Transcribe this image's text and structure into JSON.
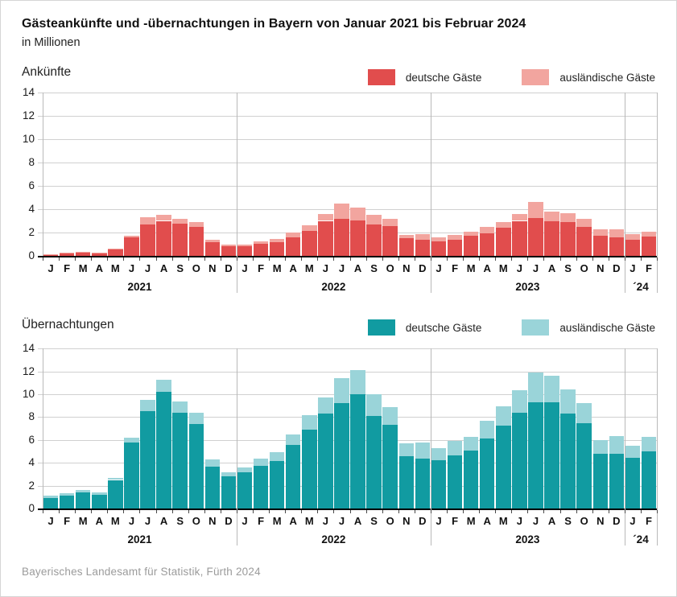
{
  "title": "Gästeankünfte und -übernachtungen in Bayern von Januar 2021 bis Februar 2024",
  "subtitle": "in Millionen",
  "source": "Bayerisches Landesamt für Statistik, Fürth 2024",
  "colors": {
    "arrivals_domestic": "#e14d4d",
    "arrivals_foreign": "#f2a59f",
    "nights_domestic": "#119ba1",
    "nights_foreign": "#9ad4d9",
    "grid": "#d0d0d0",
    "separator": "#b9b9b9",
    "axis": "#000000"
  },
  "x": {
    "month_letters": [
      "J",
      "F",
      "M",
      "A",
      "M",
      "J",
      "J",
      "A",
      "S",
      "O",
      "N",
      "D",
      "J",
      "F",
      "M",
      "A",
      "M",
      "J",
      "J",
      "A",
      "S",
      "O",
      "N",
      "D",
      "J",
      "F",
      "M",
      "A",
      "M",
      "J",
      "J",
      "A",
      "S",
      "O",
      "N",
      "D",
      "J",
      "F"
    ],
    "years": [
      {
        "label": "2021",
        "months": 12
      },
      {
        "label": "2022",
        "months": 12
      },
      {
        "label": "2023",
        "months": 12
      },
      {
        "label": "´24",
        "months": 2
      }
    ]
  },
  "chart_data": [
    {
      "type": "bar",
      "stacked": true,
      "title": "Ankünfte",
      "ylabel": "in Millionen",
      "ylim": [
        0,
        14
      ],
      "y_ticks": [
        14,
        12,
        10,
        8,
        6,
        4,
        2,
        0
      ],
      "grid": true,
      "legend_position": "top-right",
      "legend": [
        {
          "label": "deutsche Gäste",
          "color_key": "arrivals_domestic"
        },
        {
          "label": "ausländische Gäste",
          "color_key": "arrivals_foreign"
        }
      ],
      "categories": [
        "Jan 2021",
        "Feb 2021",
        "Mär 2021",
        "Apr 2021",
        "Mai 2021",
        "Jun 2021",
        "Jul 2021",
        "Aug 2021",
        "Sep 2021",
        "Okt 2021",
        "Nov 2021",
        "Dez 2021",
        "Jan 2022",
        "Feb 2022",
        "Mär 2022",
        "Apr 2022",
        "Mai 2022",
        "Jun 2022",
        "Jul 2022",
        "Aug 2022",
        "Sep 2022",
        "Okt 2022",
        "Nov 2022",
        "Dez 2022",
        "Jan 2023",
        "Feb 2023",
        "Mär 2023",
        "Apr 2023",
        "Mai 2023",
        "Jun 2023",
        "Jul 2023",
        "Aug 2023",
        "Sep 2023",
        "Okt 2023",
        "Nov 2023",
        "Dez 2023",
        "Jan 2024",
        "Feb 2024"
      ],
      "series": [
        {
          "name": "deutsche Gäste",
          "values": [
            0.1,
            0.2,
            0.3,
            0.25,
            0.55,
            1.6,
            2.7,
            3.0,
            2.75,
            2.5,
            1.2,
            0.8,
            0.8,
            1.05,
            1.2,
            1.6,
            2.15,
            3.0,
            3.15,
            3.05,
            2.7,
            2.55,
            1.5,
            1.35,
            1.25,
            1.4,
            1.7,
            1.95,
            2.4,
            3.0,
            3.25,
            2.95,
            2.9,
            2.5,
            1.75,
            1.6,
            1.35,
            1.65
          ]
        },
        {
          "name": "ausländische Gäste",
          "values": [
            0.05,
            0.05,
            0.05,
            0.05,
            0.1,
            0.15,
            0.6,
            0.55,
            0.45,
            0.4,
            0.2,
            0.15,
            0.15,
            0.2,
            0.25,
            0.4,
            0.5,
            0.6,
            1.3,
            1.1,
            0.8,
            0.6,
            0.3,
            0.5,
            0.35,
            0.4,
            0.4,
            0.5,
            0.5,
            0.6,
            1.35,
            0.85,
            0.75,
            0.7,
            0.5,
            0.7,
            0.5,
            0.4
          ]
        }
      ]
    },
    {
      "type": "bar",
      "stacked": true,
      "title": "Übernachtungen",
      "ylabel": "in Millionen",
      "ylim": [
        0,
        14
      ],
      "y_ticks": [
        14,
        12,
        10,
        8,
        6,
        4,
        2,
        0
      ],
      "grid": true,
      "legend_position": "top-right",
      "legend": [
        {
          "label": "deutsche Gäste",
          "color_key": "nights_domestic"
        },
        {
          "label": "ausländische Gäste",
          "color_key": "nights_foreign"
        }
      ],
      "categories": [
        "Jan 2021",
        "Feb 2021",
        "Mär 2021",
        "Apr 2021",
        "Mai 2021",
        "Jun 2021",
        "Jul 2021",
        "Aug 2021",
        "Sep 2021",
        "Okt 2021",
        "Nov 2021",
        "Dez 2021",
        "Jan 2022",
        "Feb 2022",
        "Mär 2022",
        "Apr 2022",
        "Mai 2022",
        "Jun 2022",
        "Jul 2022",
        "Aug 2022",
        "Sep 2022",
        "Okt 2022",
        "Nov 2022",
        "Dez 2022",
        "Jan 2023",
        "Feb 2023",
        "Mär 2023",
        "Apr 2023",
        "Mai 2023",
        "Jun 2023",
        "Jul 2023",
        "Aug 2023",
        "Sep 2023",
        "Okt 2023",
        "Nov 2023",
        "Dez 2023",
        "Jan 2024",
        "Feb 2024"
      ],
      "series": [
        {
          "name": "deutsche Gäste",
          "values": [
            0.9,
            1.1,
            1.4,
            1.2,
            2.5,
            5.8,
            8.5,
            10.2,
            8.4,
            7.4,
            3.65,
            2.8,
            3.2,
            3.75,
            4.15,
            5.55,
            6.9,
            8.3,
            9.2,
            10.0,
            8.1,
            7.3,
            4.6,
            4.35,
            4.25,
            4.65,
            5.05,
            6.15,
            7.25,
            8.4,
            9.3,
            9.3,
            8.3,
            7.45,
            4.8,
            4.8,
            4.45,
            5.0
          ]
        },
        {
          "name": "ausländische Gäste",
          "values": [
            0.2,
            0.25,
            0.25,
            0.2,
            0.15,
            0.4,
            1.0,
            1.1,
            1.0,
            1.0,
            0.65,
            0.4,
            0.4,
            0.6,
            0.8,
            0.9,
            1.3,
            1.45,
            2.2,
            2.1,
            1.9,
            1.6,
            1.1,
            1.4,
            1.05,
            1.25,
            1.25,
            1.5,
            1.7,
            1.95,
            2.6,
            2.35,
            2.1,
            1.75,
            1.2,
            1.55,
            1.05,
            1.25
          ]
        }
      ]
    }
  ]
}
